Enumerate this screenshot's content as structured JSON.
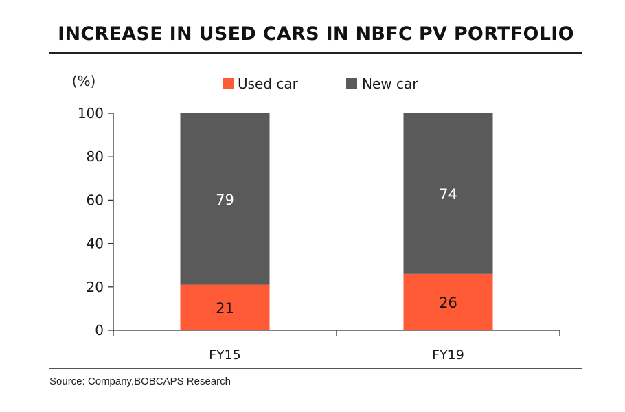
{
  "title": "INCREASE IN USED CARS IN NBFC PV PORTFOLIO",
  "source": "Source: Company,BOBCAPS Research",
  "colors": {
    "used": "#ff5a36",
    "new": "#5a5a5a",
    "axis": "#333333",
    "label_on_new": "#ffffff",
    "label_on_used": "#111111"
  },
  "chart_data": {
    "type": "bar",
    "stacked": true,
    "ylabel": "(%)",
    "ylim": [
      0,
      100
    ],
    "yticks": [
      "0",
      "20",
      "40",
      "60",
      "80",
      "100"
    ],
    "categories": [
      "FY15",
      "FY19"
    ],
    "legend_position": "top",
    "series": [
      {
        "name": "Used car",
        "values": [
          21,
          26
        ],
        "color_key": "used"
      },
      {
        "name": "New car",
        "values": [
          79,
          74
        ],
        "color_key": "new"
      }
    ]
  }
}
